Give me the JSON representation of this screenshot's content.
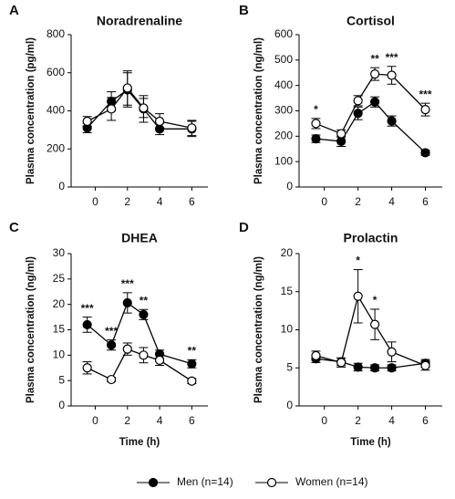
{
  "chart_data": [
    {
      "type": "line",
      "label": "A",
      "title": "Noradrenaline",
      "ylabel": "Plasma concentration (pg/ml)",
      "x": [
        -0.5,
        1,
        2,
        3,
        4,
        6
      ],
      "xlim": [
        -1.5,
        7
      ],
      "xticks": [
        0,
        2,
        4,
        6
      ],
      "ylim": [
        0,
        800
      ],
      "yticks": [
        0,
        200,
        400,
        600,
        800
      ],
      "series": [
        {
          "fill": "#000000",
          "values": [
            310,
            450,
            510,
            410,
            305,
            305
          ],
          "errors": [
            25,
            50,
            90,
            70,
            30,
            40
          ]
        },
        {
          "fill": "#ffffff",
          "values": [
            345,
            410,
            520,
            415,
            345,
            310
          ],
          "errors": [
            25,
            60,
            90,
            50,
            40,
            40
          ]
        }
      ],
      "annotations": []
    },
    {
      "type": "line",
      "label": "B",
      "title": "Cortisol",
      "ylabel": "Plasma concentration (ng/ml)",
      "x": [
        -0.5,
        1,
        2,
        3,
        4,
        6
      ],
      "xlim": [
        -1.5,
        7
      ],
      "xticks": [
        0,
        2,
        4,
        6
      ],
      "ylim": [
        0,
        600
      ],
      "yticks": [
        0,
        100,
        200,
        300,
        400,
        500,
        600
      ],
      "series": [
        {
          "fill": "#000000",
          "values": [
            190,
            180,
            290,
            335,
            260,
            135
          ],
          "errors": [
            15,
            20,
            25,
            20,
            20,
            10
          ]
        },
        {
          "fill": "#ffffff",
          "values": [
            250,
            210,
            340,
            445,
            440,
            305
          ],
          "errors": [
            20,
            15,
            20,
            25,
            35,
            25
          ]
        }
      ],
      "annotations": [
        {
          "x": -0.5,
          "text": "*"
        },
        {
          "x": 3,
          "text": "**"
        },
        {
          "x": 4,
          "text": "***"
        },
        {
          "x": 6,
          "text": "***"
        }
      ]
    },
    {
      "type": "line",
      "label": "C",
      "title": "DHEA",
      "ylabel": "Plasma concentration (ng/ml)",
      "xlabel": "Time (h)",
      "x": [
        -0.5,
        1,
        2,
        3,
        4,
        6
      ],
      "xlim": [
        -1.5,
        7
      ],
      "xticks": [
        0,
        2,
        4,
        6
      ],
      "ylim": [
        0,
        30
      ],
      "yticks": [
        0,
        5,
        10,
        15,
        20,
        25,
        30
      ],
      "series": [
        {
          "fill": "#000000",
          "values": [
            16,
            12,
            20.3,
            18,
            10.2,
            8.3
          ],
          "errors": [
            1.5,
            1,
            2,
            1,
            0.8,
            0.8
          ]
        },
        {
          "fill": "#ffffff",
          "values": [
            7.5,
            5.2,
            11.2,
            10,
            9,
            4.9
          ],
          "errors": [
            1.2,
            0.4,
            1.2,
            1.5,
            1,
            0.5
          ]
        }
      ],
      "annotations": [
        {
          "x": -0.5,
          "text": "***"
        },
        {
          "x": 1,
          "text": "***"
        },
        {
          "x": 2,
          "text": "***"
        },
        {
          "x": 3,
          "text": "**"
        },
        {
          "x": 6,
          "text": "**"
        }
      ]
    },
    {
      "type": "line",
      "label": "D",
      "title": "Prolactin",
      "ylabel": "Plasma concentration (ng/ml)",
      "xlabel": "Time (h)",
      "x": [
        -0.5,
        1,
        2,
        3,
        4,
        6
      ],
      "xlim": [
        -1.5,
        7
      ],
      "xticks": [
        0,
        2,
        4,
        6
      ],
      "ylim": [
        0,
        20
      ],
      "yticks": [
        0,
        5,
        10,
        15,
        20
      ],
      "series": [
        {
          "fill": "#000000",
          "values": [
            6.2,
            5.8,
            5.1,
            5.0,
            5.0,
            5.6
          ],
          "errors": [
            0.5,
            0.5,
            0.5,
            0.4,
            0.4,
            0.5
          ]
        },
        {
          "fill": "#ffffff",
          "values": [
            6.6,
            5.7,
            14.4,
            10.7,
            7.1,
            5.3
          ],
          "errors": [
            0.6,
            0.6,
            3.5,
            2,
            1.3,
            0.6
          ]
        }
      ],
      "annotations": [
        {
          "x": 2,
          "text": "*"
        },
        {
          "x": 3,
          "text": "*"
        }
      ]
    }
  ],
  "legend": {
    "entries": [
      {
        "name": "Men (n=14)",
        "fill": "#000000"
      },
      {
        "name": "Women (n=14)",
        "fill": "#ffffff"
      }
    ]
  }
}
